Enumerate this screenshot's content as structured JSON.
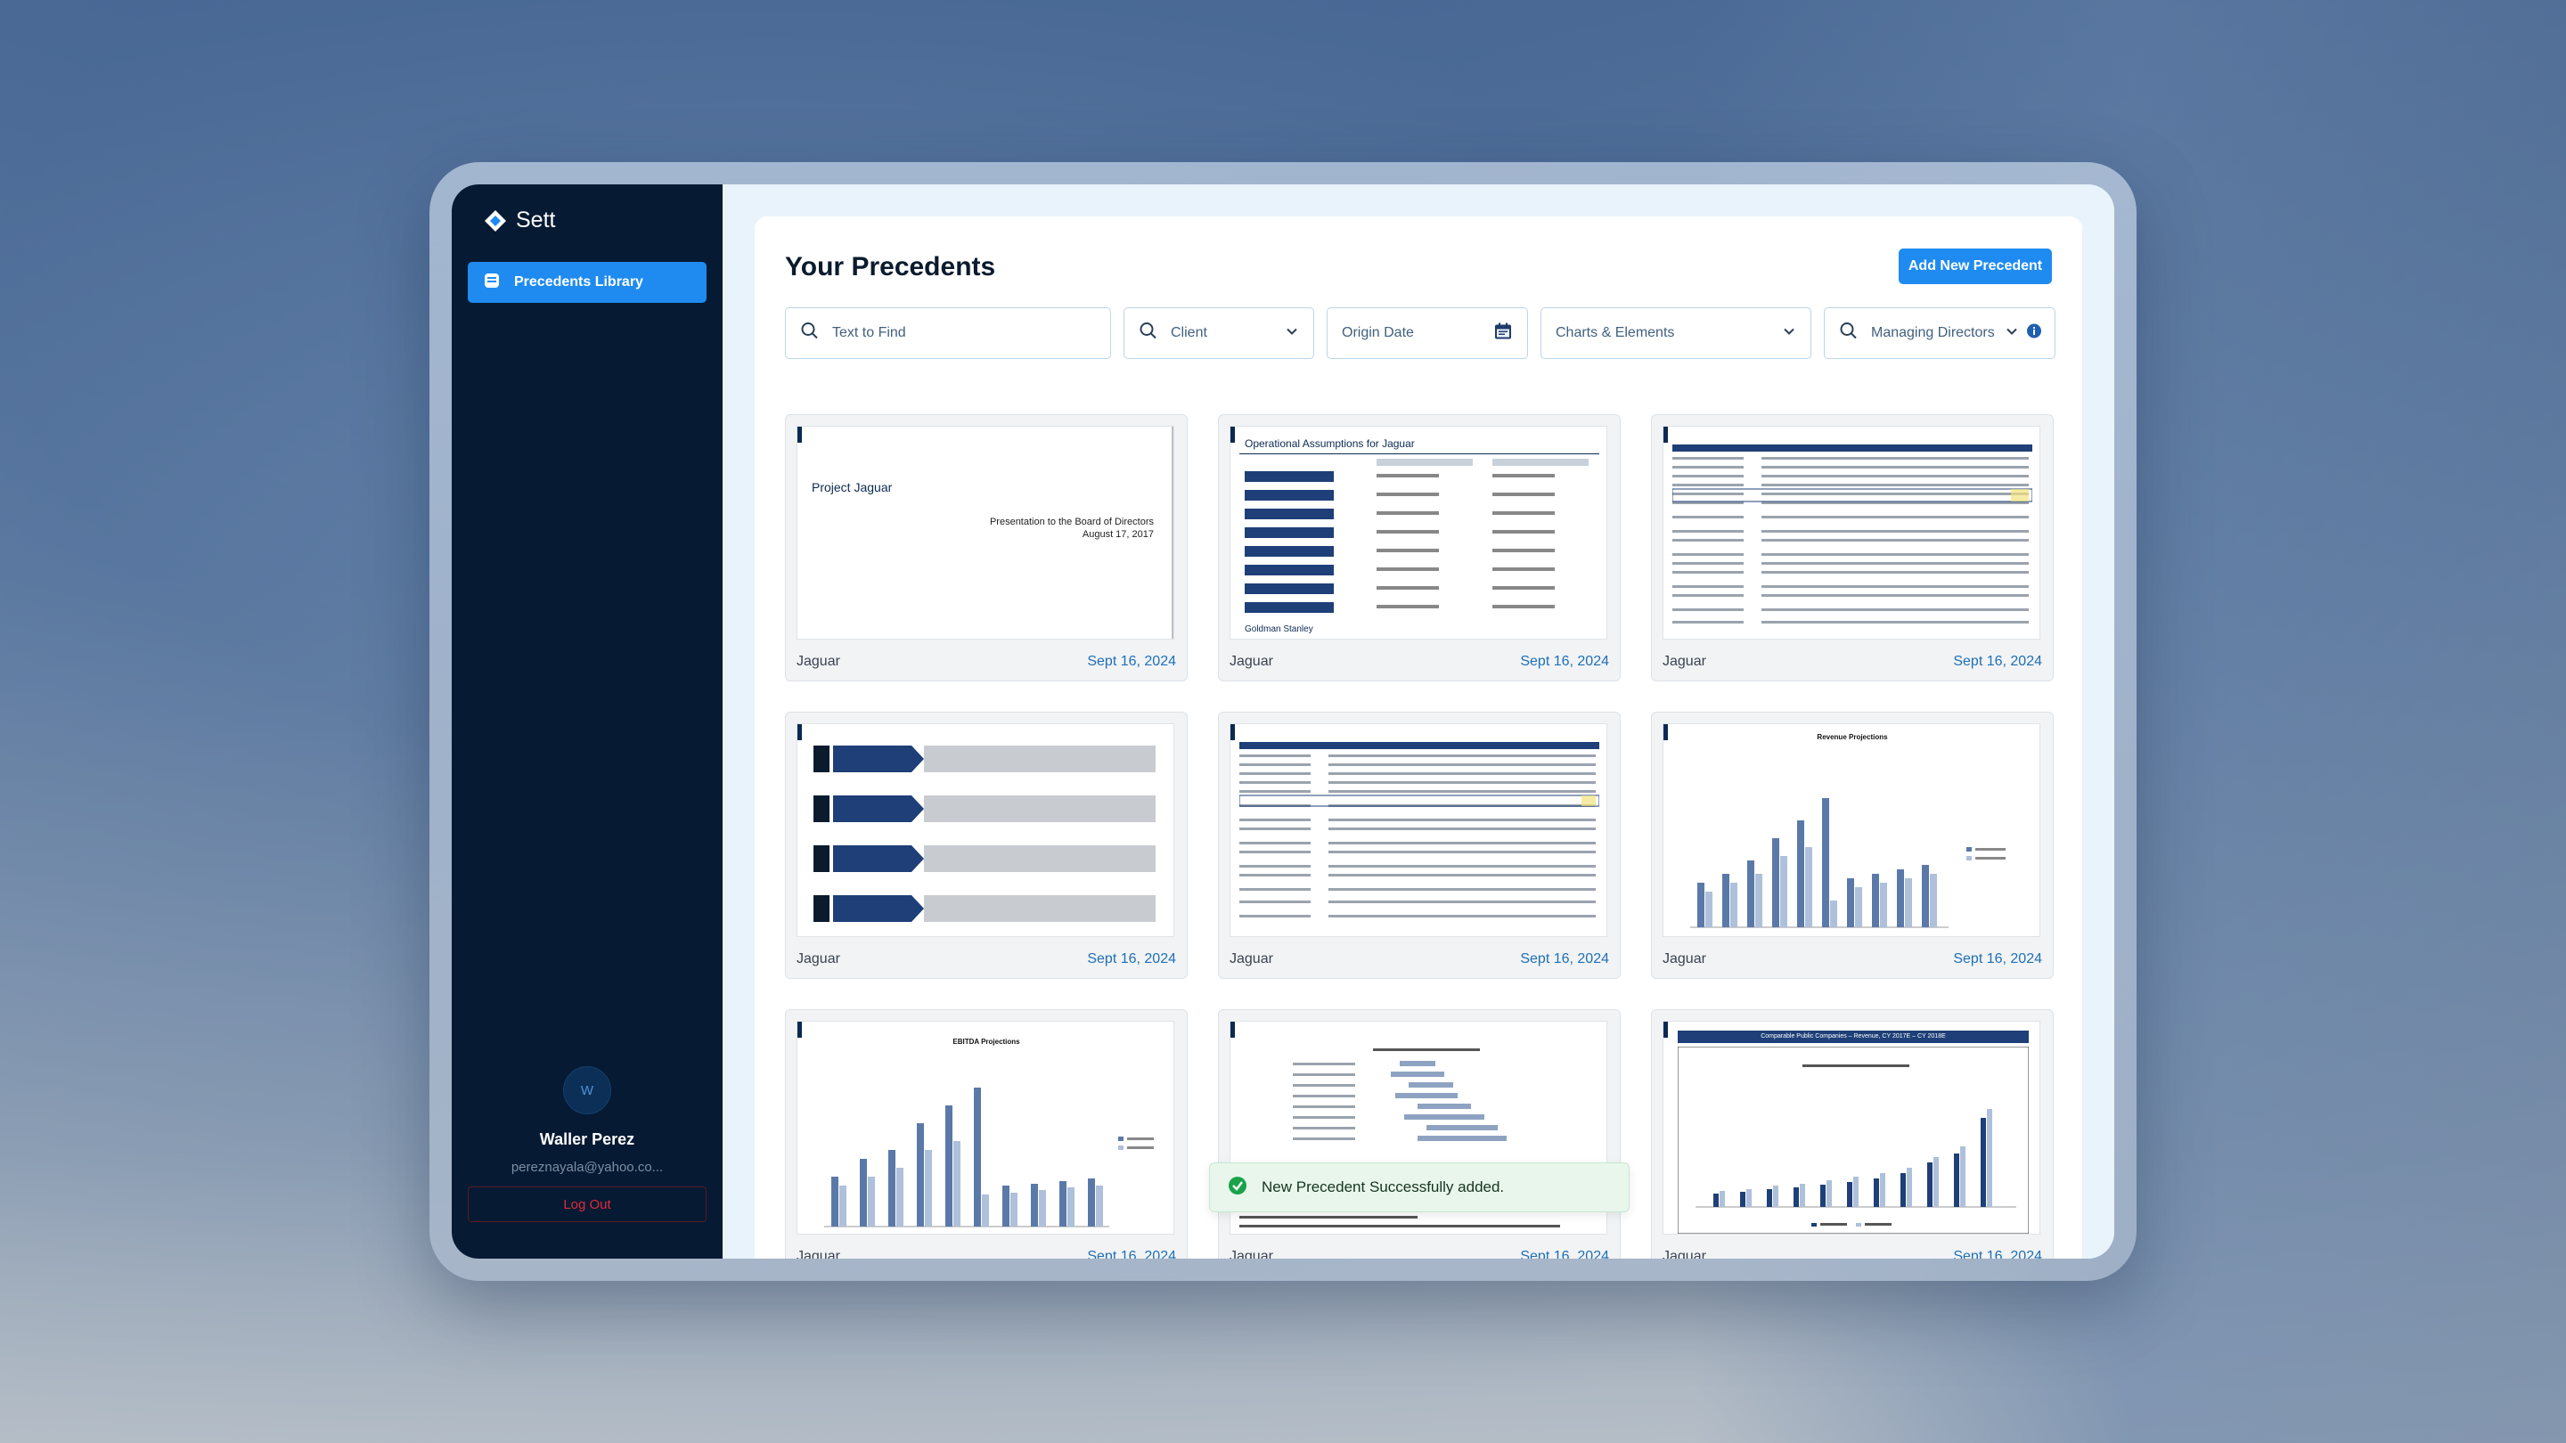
{
  "app": {
    "name": "Sett"
  },
  "sidebar": {
    "items": [
      {
        "label": "Precedents Library",
        "icon": "folder-icon",
        "active": true
      }
    ],
    "user": {
      "initial": "W",
      "name": "Waller Perez",
      "email": "pereznayala@yahoo.co...",
      "logout_label": "Log Out"
    }
  },
  "header": {
    "title": "Your Precedents",
    "add_button": "Add New Precedent"
  },
  "filters": {
    "text": {
      "placeholder": "Text to Find"
    },
    "client": {
      "label": "Client"
    },
    "origin_date": {
      "label": "Origin Date"
    },
    "charts": {
      "label": "Charts & Elements"
    },
    "managing_directors": {
      "label": "Managing Directors"
    }
  },
  "cards": [
    {
      "client": "Jaguar",
      "date": "Sept 16, 2024",
      "thumb": {
        "title": "Project Jaguar",
        "line1": "Presentation to the Board of Directors",
        "line2": "August 17, 2017"
      }
    },
    {
      "client": "Jaguar",
      "date": "Sept 16, 2024",
      "thumb": {
        "title": "Operational Assumptions for Jaguar",
        "footer": "Goldman Stanley"
      }
    },
    {
      "client": "Jaguar",
      "date": "Sept 16, 2024"
    },
    {
      "client": "Jaguar",
      "date": "Sept 16, 2024"
    },
    {
      "client": "Jaguar",
      "date": "Sept 16, 2024"
    },
    {
      "client": "Jaguar",
      "date": "Sept 16, 2024",
      "thumb": {
        "title": "Revenue Projections"
      }
    },
    {
      "client": "Jaguar",
      "date": "Sept 16, 2024",
      "thumb": {
        "title": "EBITDA Projections"
      }
    },
    {
      "client": "Jaguar",
      "date": "Sept 16, 2024"
    },
    {
      "client": "Jaguar",
      "date": "Sept 16, 2024",
      "thumb": {
        "title": "Comparable Public Companies – Revenue, CY 2017E – CY 2018E"
      }
    }
  ],
  "toast": {
    "message": "New Precedent Successfully added."
  },
  "colors": {
    "accent": "#1f8bf0",
    "sidebar": "#061a33",
    "date": "#1f6fb5",
    "success": "#1aa34a",
    "danger": "#e02b3a"
  }
}
